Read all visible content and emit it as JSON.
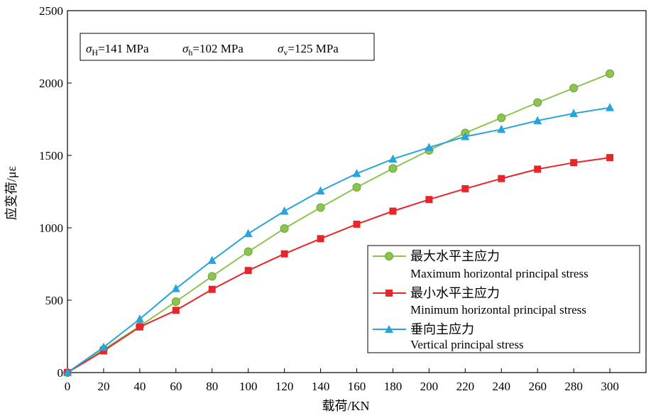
{
  "chart_data": {
    "type": "line",
    "x": [
      0,
      20,
      40,
      60,
      80,
      100,
      120,
      140,
      160,
      180,
      200,
      220,
      240,
      260,
      280,
      300
    ],
    "series": [
      {
        "name_cn": "最大水平主应力",
        "name_en": "Maximum horizontal principal stress",
        "color": "#8dc44e",
        "marker": "circle",
        "values": [
          0,
          160,
          320,
          490,
          665,
          835,
          995,
          1140,
          1280,
          1410,
          1535,
          1655,
          1760,
          1865,
          1965,
          2065
        ]
      },
      {
        "name_cn": "最小水平主应力",
        "name_en": "Minimum horizontal principal stress",
        "color": "#e8262a",
        "marker": "square",
        "values": [
          0,
          150,
          315,
          430,
          575,
          705,
          820,
          925,
          1025,
          1115,
          1195,
          1270,
          1340,
          1405,
          1450,
          1485
        ]
      },
      {
        "name_cn": "垂向主应力",
        "name_en": "Vertical principal stress",
        "color": "#27a3dd",
        "marker": "triangle",
        "values": [
          0,
          175,
          370,
          580,
          775,
          960,
          1115,
          1255,
          1375,
          1475,
          1555,
          1630,
          1680,
          1740,
          1790,
          1830
        ]
      }
    ],
    "xlabel": "载荷/KN",
    "ylabel": "应变荷/με",
    "xlim": [
      0,
      320
    ],
    "ylim": [
      0,
      2500
    ],
    "xticks": [
      0,
      20,
      40,
      60,
      80,
      100,
      120,
      140,
      160,
      180,
      200,
      220,
      240,
      260,
      280,
      300
    ],
    "yticks": [
      0,
      500,
      1000,
      1500,
      2000,
      2500
    ],
    "grid": false,
    "legend_position": "bottom-right",
    "annotation": {
      "H": {
        "sym": "σ",
        "sub": "H",
        "text": "=141 MPa"
      },
      "h": {
        "sym": "σ",
        "sub": "h",
        "text": "=102 MPa"
      },
      "v": {
        "sym": "σ",
        "sub": "v",
        "text": "=125 MPa"
      }
    }
  }
}
